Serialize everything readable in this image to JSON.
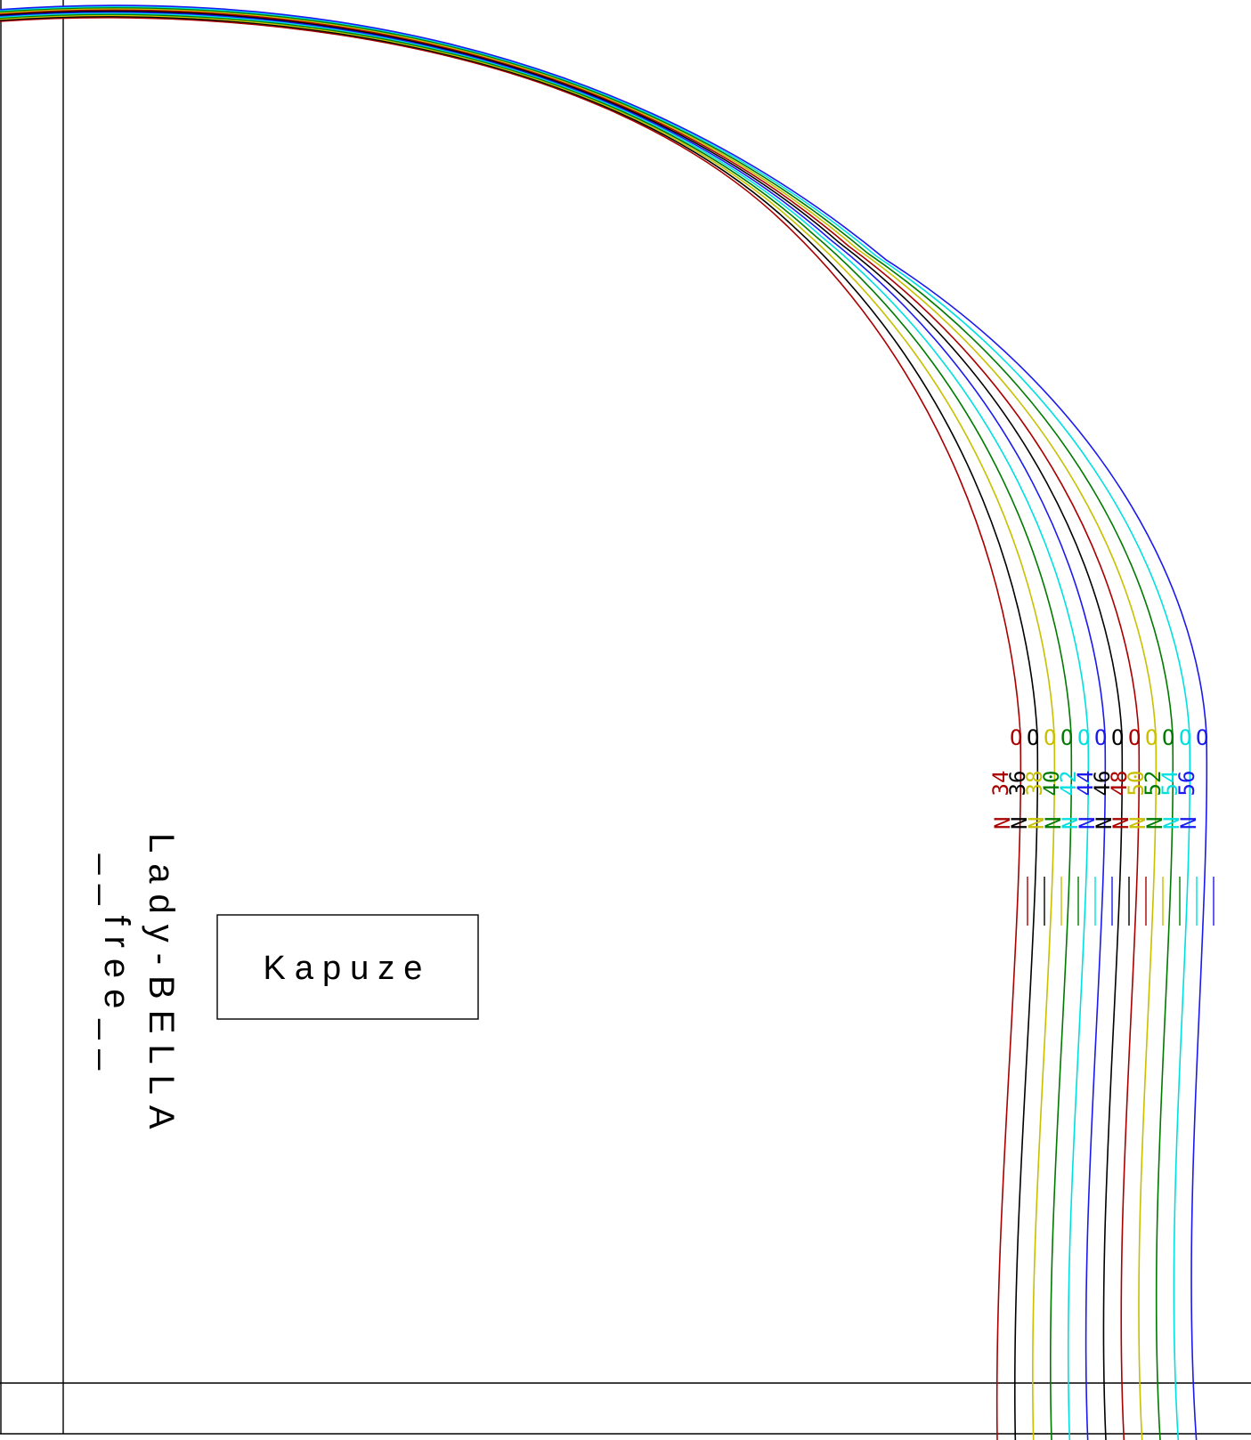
{
  "pattern": {
    "title": "Kapuze",
    "brand": "Lady-BELLA",
    "edition": "__free__"
  },
  "sizes": [
    {
      "label": "34",
      "color": "#aa0000"
    },
    {
      "label": "36",
      "color": "#000000"
    },
    {
      "label": "38",
      "color": "#c8c000"
    },
    {
      "label": "40",
      "color": "#007a00"
    },
    {
      "label": "42",
      "color": "#00e0e0"
    },
    {
      "label": "44",
      "color": "#1a1aee"
    },
    {
      "label": "46",
      "color": "#000000"
    },
    {
      "label": "48",
      "color": "#aa0000"
    },
    {
      "label": "50",
      "color": "#c8c000"
    },
    {
      "label": "52",
      "color": "#007a00"
    },
    {
      "label": "54",
      "color": "#00e0e0"
    },
    {
      "label": "56",
      "color": "#1a1aee"
    }
  ],
  "notch_mark": "N",
  "notch_marker": "O"
}
